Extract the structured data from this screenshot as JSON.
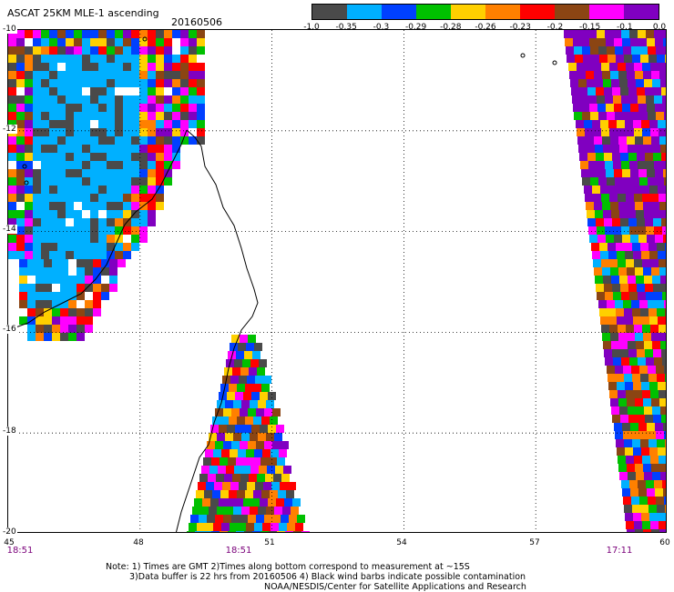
{
  "title": "ASCAT 25KM MLE-1 ascending",
  "date": "20160506",
  "colorbar": {
    "colors": [
      "#4a4a4a",
      "#00b0ff",
      "#0040ff",
      "#00c000",
      "#ffd000",
      "#ff8000",
      "#ff0000",
      "#8b4513",
      "#ff00ff",
      "#8000c0"
    ],
    "labels": [
      "-1.0",
      "-0.35",
      "-0.3",
      "-0.29",
      "-0.28",
      "-0.26",
      "-0.23",
      "-0.2",
      "-0.15",
      "-0.1",
      "0.0"
    ]
  },
  "axes": {
    "lat_labels": [
      "-10",
      "-12",
      "-14",
      "-16",
      "-18",
      "-20"
    ],
    "lon_labels": [
      "45",
      "48",
      "51",
      "54",
      "57",
      "60"
    ]
  },
  "pass_times": [
    {
      "text": "18:51"
    },
    {
      "text": "18:51"
    },
    {
      "text": "17:11"
    }
  ],
  "notes": {
    "line1": "Note: 1) Times are GMT 2)Times along bottom correspond to measurement at ~15S",
    "line2": "3)Data buffer is 22 hrs from 20160506 4) Black wind barbs indicate possible contamination",
    "line3": "NOAA/NESDIS/Center for Satellite Applications and Research"
  }
}
